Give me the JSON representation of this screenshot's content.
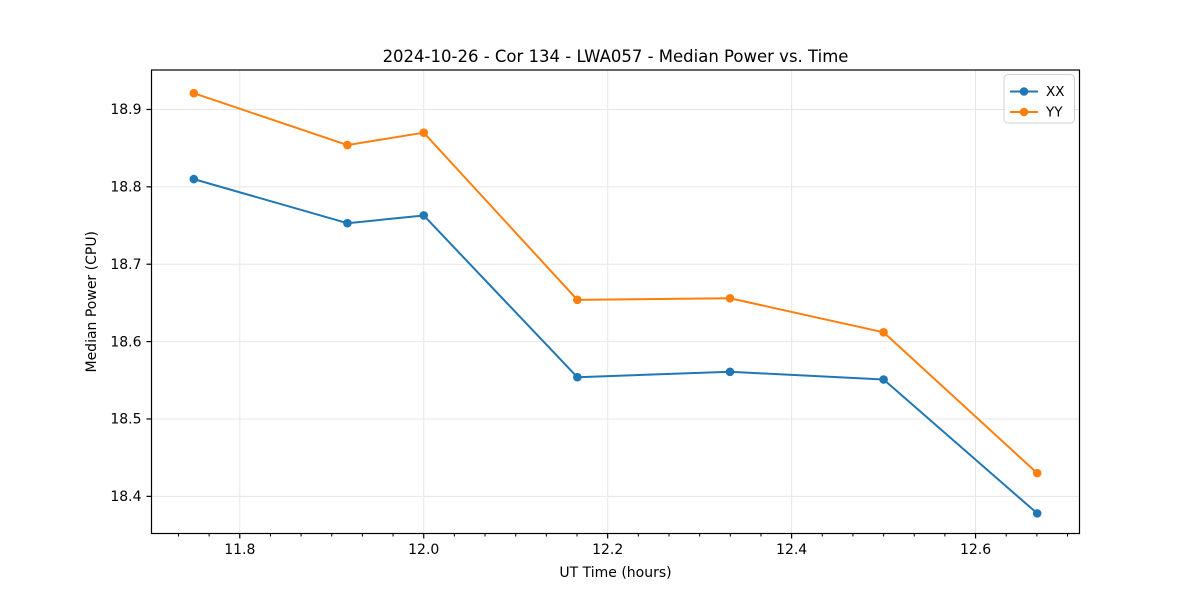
{
  "chart_data": {
    "type": "line",
    "title": "2024-10-26 - Cor 134 - LWA057 - Median Power vs. Time",
    "xlabel": "UT Time (hours)",
    "ylabel": "Median Power (CPU)",
    "x": [
      11.75,
      11.917,
      12.0,
      12.167,
      12.333,
      12.5,
      12.667
    ],
    "series": [
      {
        "name": "XX",
        "color": "#1f77b4",
        "values": [
          18.81,
          18.753,
          18.763,
          18.554,
          18.561,
          18.551,
          18.378
        ]
      },
      {
        "name": "YY",
        "color": "#ff7f0e",
        "values": [
          18.921,
          18.854,
          18.87,
          18.654,
          18.656,
          18.612,
          18.43
        ]
      }
    ],
    "xlim": [
      11.704,
      12.713
    ],
    "ylim": [
      18.352,
      18.951
    ],
    "x_ticks": [
      11.8,
      12.0,
      12.2,
      12.4,
      12.6
    ],
    "y_ticks": [
      18.4,
      18.5,
      18.6,
      18.7,
      18.8,
      18.9
    ],
    "x_tick_decimals": 1,
    "y_tick_decimals": 1,
    "x_minor_interval": 0.0333333,
    "grid": true,
    "legend_position": "upper right",
    "marker": "o",
    "colors": {
      "grid": "#e7e7e7",
      "spine": "#000000",
      "background": "#ffffff",
      "legend_border": "#d0d0d0"
    }
  }
}
